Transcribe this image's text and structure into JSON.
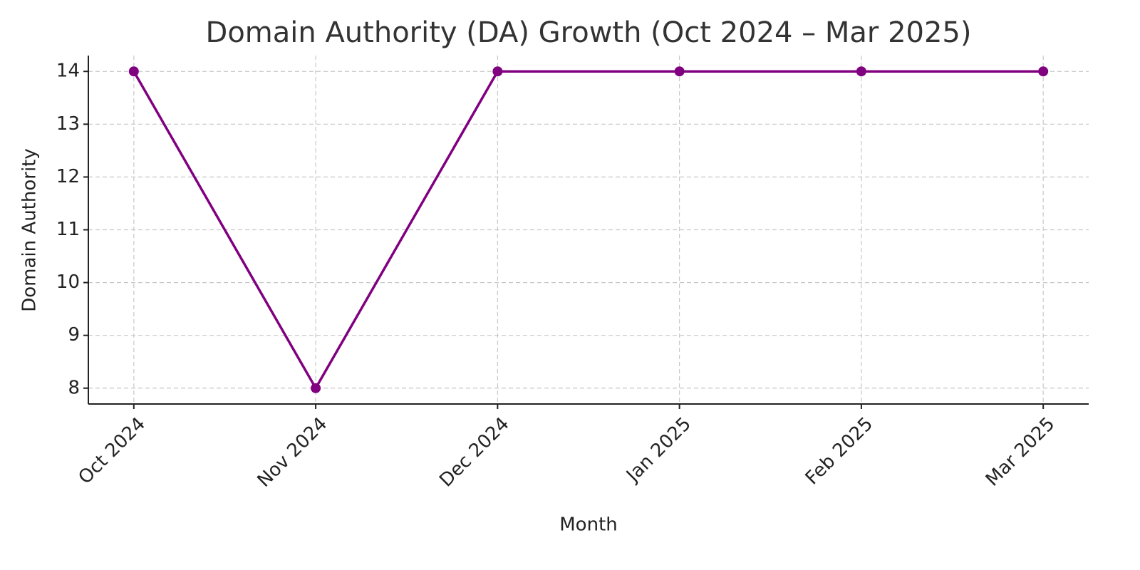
{
  "chart_data": {
    "type": "line",
    "title": "Domain Authority (DA) Growth (Oct 2024 – Mar 2025)",
    "x_label": "Month",
    "y_label": "Domain Authority",
    "categories": [
      "Oct 2024",
      "Nov 2024",
      "Dec 2024",
      "Jan 2025",
      "Feb 2025",
      "Mar 2025"
    ],
    "series": [
      {
        "name": "Domain Authority",
        "color": "#800080",
        "values": [
          14,
          8,
          14,
          14,
          14,
          14
        ]
      }
    ],
    "ylim": [
      7.7,
      14.3
    ],
    "yticks": [
      8,
      9,
      10,
      11,
      12,
      13,
      14
    ],
    "grid": true
  }
}
